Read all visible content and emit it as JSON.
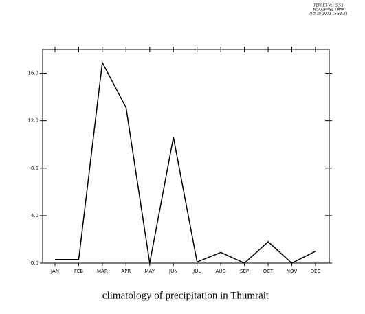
{
  "header": [
    "FERRET Ver. 5.53",
    "NOAA/PMEL TMAP",
    "Oct 29 2002 15:53:24"
  ],
  "chart_data": {
    "type": "line",
    "title": "climatology of precipitation in Thumrait",
    "categories": [
      "JAN",
      "FEB",
      "MAR",
      "APR",
      "MAY",
      "JUN",
      "JUL",
      "AUG",
      "SEP",
      "OCT",
      "NOV",
      "DEC"
    ],
    "values": [
      0.3,
      0.3,
      16.9,
      13.1,
      0,
      10.6,
      0.1,
      0.9,
      0,
      1.8,
      0,
      1.0
    ],
    "color": "#000000",
    "ylim": [
      0,
      18
    ],
    "yticks": [
      {
        "value": 0,
        "label": "0.0"
      },
      {
        "value": 4,
        "label": "4.0"
      },
      {
        "value": 8,
        "label": "8.0"
      },
      {
        "value": 12,
        "label": "12.0"
      },
      {
        "value": 16,
        "label": "16.0"
      }
    ]
  }
}
